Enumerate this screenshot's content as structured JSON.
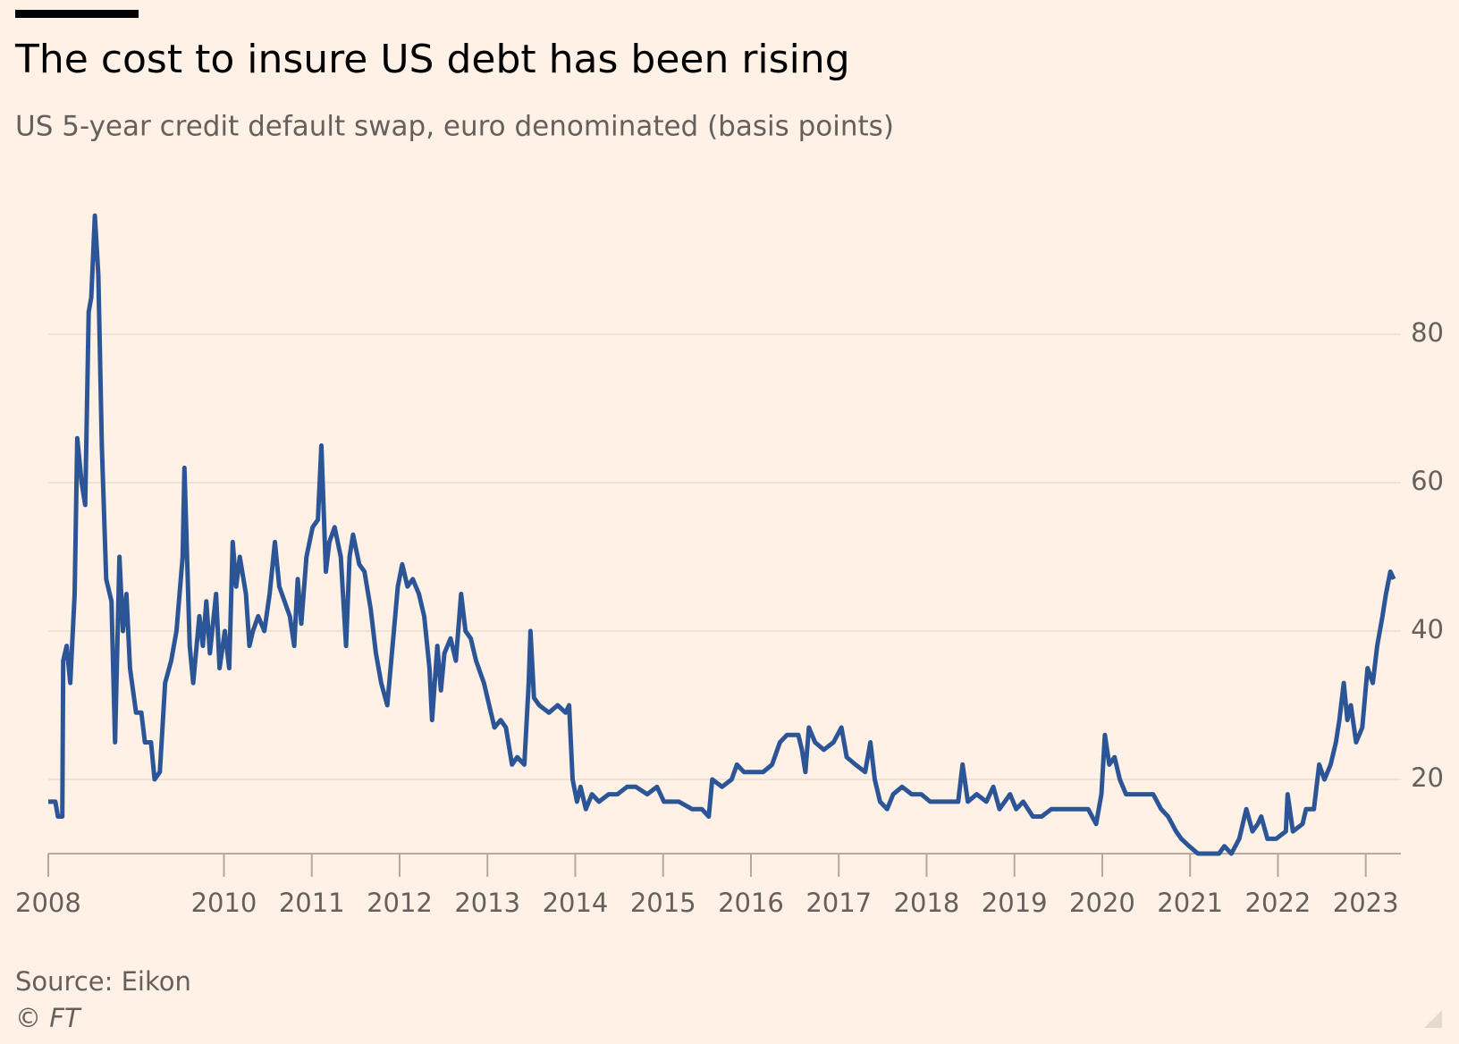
{
  "chart_data": {
    "type": "line",
    "title": "The cost to insure US debt has been rising",
    "subtitle": "US 5-year credit default swap, euro denominated (basis points)",
    "source": "Source: Eikon",
    "copyright": "© FT",
    "color": "#2c5597",
    "grid": true,
    "y_axis_side": "right",
    "xlim": [
      2008,
      2023.4
    ],
    "xticks": [
      2008,
      2010,
      2011,
      2012,
      2013,
      2014,
      2015,
      2016,
      2017,
      2018,
      2019,
      2020,
      2021,
      2022,
      2023
    ],
    "ylim": [
      10,
      100
    ],
    "yticks": [
      20,
      40,
      60,
      80
    ],
    "x": [
      2008.0,
      2008.08,
      2008.11,
      2008.16,
      2008.17,
      2008.21,
      2008.25,
      2008.3,
      2008.33,
      2008.38,
      2008.42,
      2008.46,
      2008.49,
      2008.53,
      2008.57,
      2008.61,
      2008.66,
      2008.72,
      2008.76,
      2008.81,
      2008.85,
      2008.89,
      2008.93,
      2009.0,
      2009.06,
      2009.1,
      2009.17,
      2009.21,
      2009.27,
      2009.33,
      2009.4,
      2009.46,
      2009.53,
      2009.55,
      2009.61,
      2009.65,
      2009.72,
      2009.76,
      2009.8,
      2009.84,
      2009.91,
      2009.95,
      2010.01,
      2010.06,
      2010.1,
      2010.14,
      2010.18,
      2010.25,
      2010.29,
      2010.33,
      2010.39,
      2010.46,
      2010.52,
      2010.58,
      2010.63,
      2010.69,
      2010.75,
      2010.8,
      2010.84,
      2010.88,
      2010.94,
      2011.01,
      2011.07,
      2011.11,
      2011.16,
      2011.2,
      2011.26,
      2011.33,
      2011.39,
      2011.43,
      2011.47,
      2011.54,
      2011.6,
      2011.67,
      2011.73,
      2011.79,
      2011.86,
      2011.92,
      2011.98,
      2012.03,
      2012.09,
      2012.15,
      2012.22,
      2012.28,
      2012.34,
      2012.37,
      2012.43,
      2012.47,
      2012.51,
      2012.58,
      2012.64,
      2012.7,
      2012.75,
      2012.81,
      2012.87,
      2012.96,
      2013.02,
      2013.08,
      2013.15,
      2013.21,
      2013.28,
      2013.34,
      2013.42,
      2013.47,
      2013.49,
      2013.53,
      2013.59,
      2013.7,
      2013.8,
      2013.89,
      2013.93,
      2013.97,
      2014.02,
      2014.06,
      2014.12,
      2014.19,
      2014.27,
      2014.38,
      2014.48,
      2014.59,
      2014.69,
      2014.82,
      2014.93,
      2015.01,
      2015.18,
      2015.33,
      2015.44,
      2015.52,
      2015.56,
      2015.67,
      2015.78,
      2015.84,
      2015.92,
      2016.03,
      2016.14,
      2016.24,
      2016.33,
      2016.41,
      2016.54,
      2016.58,
      2016.62,
      2016.66,
      2016.73,
      2016.83,
      2016.94,
      2017.03,
      2017.09,
      2017.19,
      2017.3,
      2017.36,
      2017.41,
      2017.47,
      2017.55,
      2017.62,
      2017.72,
      2017.83,
      2017.94,
      2018.04,
      2018.15,
      2018.36,
      2018.41,
      2018.47,
      2018.57,
      2018.68,
      2018.76,
      2018.83,
      2018.95,
      2019.02,
      2019.1,
      2019.21,
      2019.31,
      2019.42,
      2019.53,
      2019.63,
      2019.74,
      2019.84,
      2019.93,
      2019.99,
      2020.03,
      2020.08,
      2020.14,
      2020.2,
      2020.27,
      2020.37,
      2020.48,
      2020.58,
      2020.67,
      2020.75,
      2020.84,
      2020.9,
      2020.99,
      2021.09,
      2021.22,
      2021.33,
      2021.39,
      2021.47,
      2021.56,
      2021.64,
      2021.71,
      2021.77,
      2021.81,
      2021.88,
      2021.98,
      2022.09,
      2022.11,
      2022.17,
      2022.28,
      2022.32,
      2022.41,
      2022.47,
      2022.53,
      2022.6,
      2022.66,
      2022.7,
      2022.75,
      2022.79,
      2022.83,
      2022.89,
      2022.96,
      2023.02,
      2023.08,
      2023.13,
      2023.19,
      2023.23,
      2023.28,
      2023.32
    ],
    "values": [
      17,
      17,
      15,
      15,
      36,
      38,
      33,
      45,
      66,
      60,
      57,
      83,
      85,
      96,
      88,
      65,
      47,
      44,
      25,
      50,
      40,
      45,
      35,
      29,
      29,
      25,
      25,
      20,
      21,
      33,
      36,
      40,
      50,
      62,
      38,
      33,
      42,
      38,
      44,
      37,
      45,
      35,
      40,
      35,
      52,
      46,
      50,
      45,
      38,
      40,
      42,
      40,
      45,
      52,
      46,
      44,
      42,
      38,
      47,
      41,
      50,
      54,
      55,
      65,
      48,
      52,
      54,
      50,
      38,
      50,
      53,
      49,
      48,
      43,
      37,
      33,
      30,
      38,
      46,
      49,
      46,
      47,
      45,
      42,
      35,
      28,
      38,
      32,
      37,
      39,
      36,
      45,
      40,
      39,
      36,
      33,
      30,
      27,
      28,
      27,
      22,
      23,
      22,
      33,
      40,
      31,
      30,
      29,
      30,
      29,
      30,
      20,
      17,
      19,
      16,
      18,
      17,
      18,
      18,
      19,
      19,
      18,
      19,
      17,
      17,
      16,
      16,
      15,
      20,
      19,
      20,
      22,
      21,
      21,
      21,
      22,
      25,
      26,
      26,
      24,
      21,
      27,
      25,
      24,
      25,
      27,
      23,
      22,
      21,
      25,
      20,
      17,
      16,
      18,
      19,
      18,
      18,
      17,
      17,
      17,
      22,
      17,
      18,
      17,
      19,
      16,
      18,
      16,
      17,
      15,
      15,
      16,
      16,
      16,
      16,
      16,
      14,
      18,
      26,
      22,
      23,
      20,
      18,
      18,
      18,
      18,
      16,
      15,
      13,
      12,
      11,
      10,
      10,
      10,
      11,
      10,
      12,
      16,
      13,
      14,
      15,
      12,
      12,
      13,
      18,
      13,
      14,
      16,
      16,
      22,
      20,
      22,
      25,
      28,
      33,
      28,
      30,
      25,
      27,
      35,
      33,
      38,
      42,
      45,
      48,
      47
    ]
  }
}
